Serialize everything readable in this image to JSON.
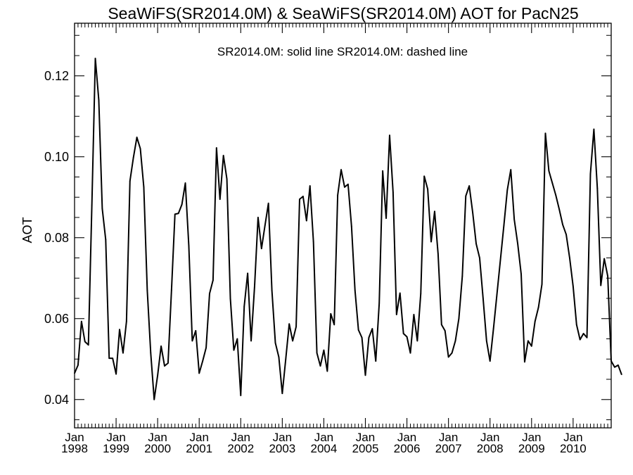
{
  "chart_data": {
    "type": "line",
    "title": "SeaWiFS(SR2014.0M) & SeaWiFS(SR2014.0M)  AOT for PacN25",
    "legend_text": "SR2014.0M: solid line   SR2014.0M: dashed line",
    "ylabel": "AOT",
    "xlabel": "",
    "xlim": [
      "1998-01",
      "2010-12"
    ],
    "ylim": [
      0.033,
      0.133
    ],
    "y_ticks": [
      "0.04",
      "0.06",
      "0.08",
      "0.10",
      "0.12"
    ],
    "x_ticks": [
      {
        "month": "Jan",
        "year": "1998"
      },
      {
        "month": "Jan",
        "year": "1999"
      },
      {
        "month": "Jan",
        "year": "2000"
      },
      {
        "month": "Jan",
        "year": "2001"
      },
      {
        "month": "Jan",
        "year": "2002"
      },
      {
        "month": "Jan",
        "year": "2003"
      },
      {
        "month": "Jan",
        "year": "2004"
      },
      {
        "month": "Jan",
        "year": "2005"
      },
      {
        "month": "Jan",
        "year": "2006"
      },
      {
        "month": "Jan",
        "year": "2007"
      },
      {
        "month": "Jan",
        "year": "2008"
      },
      {
        "month": "Jan",
        "year": "2009"
      },
      {
        "month": "Jan",
        "year": "2010"
      }
    ],
    "series": [
      {
        "style": "solid",
        "start": "1998-01",
        "values": [
          0.0465,
          0.0485,
          0.0593,
          0.0543,
          0.0535,
          0.088,
          0.1243,
          0.114,
          0.0872,
          0.0795,
          0.0502,
          0.0502,
          0.0463,
          0.0573,
          0.0515,
          0.0593,
          0.094,
          0.0998,
          0.1048,
          0.102,
          0.0925,
          0.067,
          0.0515,
          0.04,
          0.046,
          0.0532,
          0.0483,
          0.049,
          0.067,
          0.0858,
          0.086,
          0.0882,
          0.0935,
          0.078,
          0.0545,
          0.057,
          0.0465,
          0.0495,
          0.0528,
          0.0662,
          0.0695,
          0.1022,
          0.0895,
          0.1003,
          0.0945,
          0.065,
          0.0522,
          0.055,
          0.041,
          0.063,
          0.0712,
          0.0545,
          0.068,
          0.085,
          0.0773,
          0.083,
          0.0885,
          0.067,
          0.054,
          0.0505,
          0.0415,
          0.05,
          0.0587,
          0.0545,
          0.058,
          0.0895,
          0.0902,
          0.0842,
          0.0928,
          0.079,
          0.0515,
          0.0483,
          0.0522,
          0.047,
          0.0612,
          0.0585,
          0.0905,
          0.0968,
          0.0925,
          0.0932,
          0.0828,
          0.067,
          0.0572,
          0.0553,
          0.046,
          0.0553,
          0.0575,
          0.0495,
          0.0638,
          0.0965,
          0.0848,
          0.1053,
          0.0912,
          0.061,
          0.0663,
          0.0563,
          0.0555,
          0.0515,
          0.061,
          0.0545,
          0.0662,
          0.0952,
          0.092,
          0.079,
          0.0865,
          0.076,
          0.0585,
          0.057,
          0.0505,
          0.0515,
          0.0545,
          0.06,
          0.0705,
          0.0903,
          0.0928,
          0.0862,
          0.0785,
          0.075,
          0.065,
          0.0545,
          0.0495,
          0.0575,
          0.066,
          0.0745,
          0.083,
          0.0918,
          0.0968,
          0.0845,
          0.0785,
          0.071,
          0.0493,
          0.0545,
          0.0532,
          0.0593,
          0.0628,
          0.0685,
          0.1058,
          0.0965,
          0.0935,
          0.0905,
          0.087,
          0.0832,
          0.0808,
          0.075,
          0.068,
          0.0585,
          0.0548,
          0.0563,
          0.0553,
          0.0958,
          0.1068,
          0.0922,
          0.0682,
          0.0748,
          0.0705,
          0.0495,
          0.048,
          0.0485,
          0.0462
        ]
      }
    ]
  }
}
